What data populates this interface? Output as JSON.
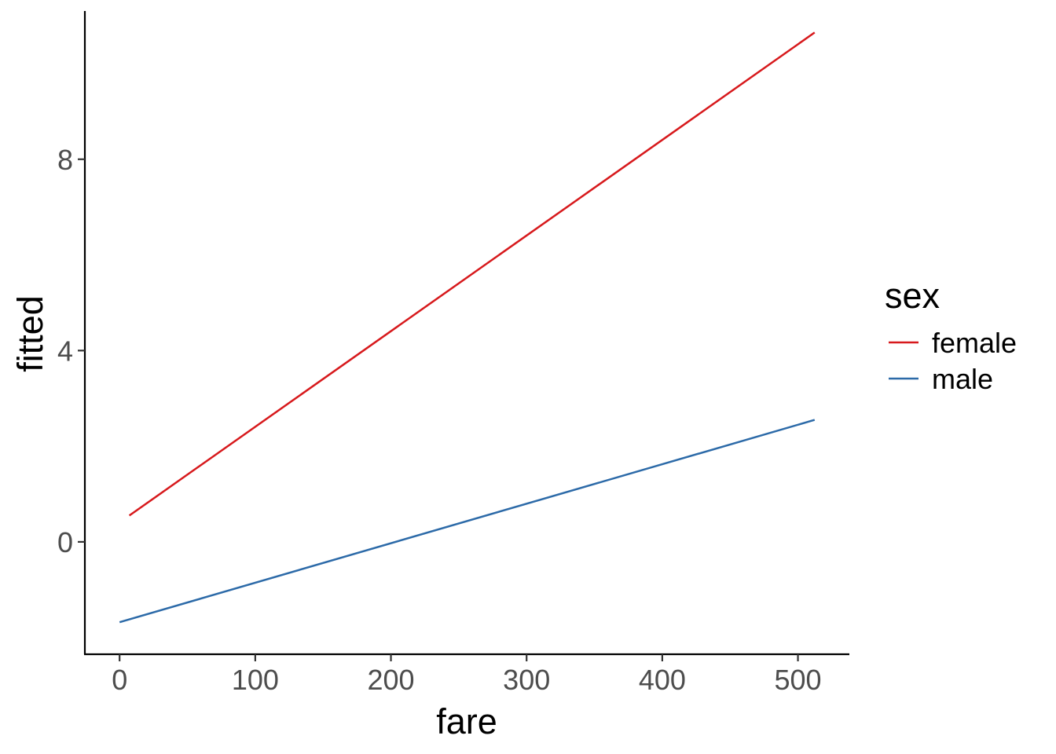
{
  "chart_data": {
    "type": "line",
    "xlabel": "fare",
    "ylabel": "fitted",
    "xlim": [
      -25.6,
      537.9
    ],
    "ylim": [
      -2.35,
      11.1
    ],
    "x_ticks": [
      0,
      100,
      200,
      300,
      400,
      500
    ],
    "y_ticks": [
      0,
      4,
      8
    ],
    "grid": false,
    "legend": {
      "title": "sex",
      "placement": "right"
    },
    "series": [
      {
        "name": "female",
        "color": "#d7191c",
        "x": [
          7.2,
          512.3
        ],
        "y": [
          0.55,
          10.65
        ]
      },
      {
        "name": "male",
        "color": "#2c6aa8",
        "x": [
          0,
          512.3
        ],
        "y": [
          -1.68,
          2.55
        ]
      }
    ]
  }
}
